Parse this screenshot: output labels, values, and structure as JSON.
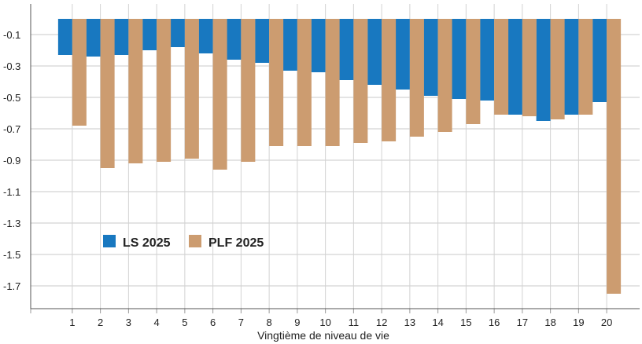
{
  "chart_data": {
    "type": "bar",
    "xlabel": "Vingtième de niveau de vie",
    "ylabel": "",
    "categories": [
      "1",
      "2",
      "3",
      "4",
      "5",
      "6",
      "7",
      "8",
      "9",
      "10",
      "11",
      "12",
      "13",
      "14",
      "15",
      "16",
      "17",
      "18",
      "19",
      "20"
    ],
    "ylim": [
      -1.8,
      0.0
    ],
    "yticks": [
      -0.1,
      -0.3,
      -0.5,
      -0.7,
      -0.9,
      -1.1,
      -1.3,
      -1.5,
      -1.7
    ],
    "ytick_labels": [
      "-0.1",
      "-0.3",
      "-0.5",
      "-0.7",
      "-0.9",
      "-1.1",
      "-1.3",
      "-1.5",
      "-1.7"
    ],
    "grid": true,
    "legend_position": "bottom-left",
    "series": [
      {
        "name": "LS 2025",
        "color": "#1878c0",
        "values": [
          -0.23,
          -0.24,
          -0.23,
          -0.2,
          -0.18,
          -0.22,
          -0.26,
          -0.28,
          -0.33,
          -0.34,
          -0.39,
          -0.42,
          -0.45,
          -0.49,
          -0.51,
          -0.52,
          -0.61,
          -0.65,
          -0.61,
          -0.53
        ]
      },
      {
        "name": "PLF 2025",
        "color": "#cc9c70",
        "values": [
          -0.68,
          -0.95,
          -0.92,
          -0.91,
          -0.89,
          -0.96,
          -0.91,
          -0.81,
          -0.81,
          -0.81,
          -0.79,
          -0.78,
          -0.75,
          -0.72,
          -0.67,
          -0.61,
          -0.62,
          -0.64,
          -0.61,
          -1.75
        ]
      }
    ]
  }
}
